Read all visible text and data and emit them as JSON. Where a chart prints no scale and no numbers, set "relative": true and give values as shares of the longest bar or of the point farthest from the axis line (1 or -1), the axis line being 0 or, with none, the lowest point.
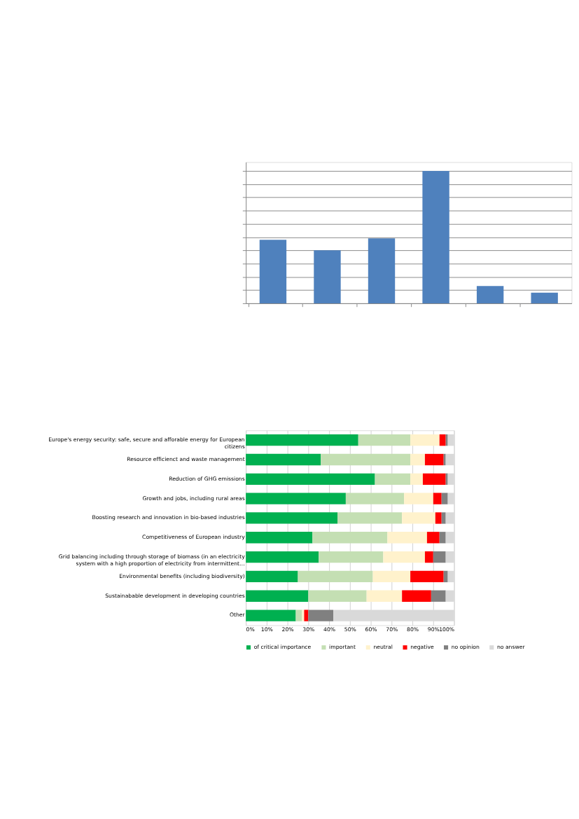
{
  "chart_data": [
    {
      "type": "bar",
      "relative": true,
      "categories": [
        null,
        null,
        null,
        null,
        null,
        null
      ],
      "values": [
        0.48,
        0.4,
        0.49,
        1,
        0.13,
        0.08
      ],
      "color": "#4f81bd",
      "grid": "y"
    },
    {
      "type": "bar",
      "orientation": "horizontal",
      "stacked": true,
      "categories": [
        "Europe's energy security: safe, secure and afforable energy for European citizens",
        "Resource efficienct and waste management",
        "Reduction of GHG emissions",
        "Growth and jobs, including rural areas",
        "Boosting research and innovation in bio-based industries",
        "Competitiveness of European industry",
        "Grid balancing including through storage of biomass (in an electricity system with a high proportion of electricity from intermittent…",
        "Environmental benefits (including biodiversity)",
        "Sustainabable development in developing countries",
        "Other"
      ],
      "series": [
        {
          "name": "of critical importance",
          "color": "#00b050",
          "values": [
            54,
            36,
            62,
            48,
            44,
            32,
            35,
            25,
            30,
            24
          ]
        },
        {
          "name": "important",
          "color": "#c4dfb3",
          "values": [
            25,
            43,
            17,
            28,
            31,
            36,
            31,
            36,
            28,
            3
          ]
        },
        {
          "name": "neutral",
          "color": "#fff2cc",
          "values": [
            14,
            7,
            6,
            14,
            16,
            19,
            20,
            18,
            17,
            1
          ]
        },
        {
          "name": "negative",
          "color": "#ff0000",
          "values": [
            3,
            9,
            11,
            4,
            3,
            6,
            4,
            16,
            14,
            2
          ]
        },
        {
          "name": "no opinion",
          "color": "#808080",
          "values": [
            1,
            1,
            1,
            3,
            2,
            3,
            6,
            2,
            7,
            12
          ]
        },
        {
          "name": "no answer",
          "color": "#d9d9d9",
          "values": [
            3,
            4,
            3,
            3,
            4,
            4,
            4,
            3,
            4,
            58
          ]
        }
      ],
      "xlim": [
        0,
        100
      ],
      "xticks": [
        {
          "value": 0,
          "label": "0%"
        },
        {
          "value": 10,
          "label": "10%"
        },
        {
          "value": 20,
          "label": "20%"
        },
        {
          "value": 30,
          "label": "30%"
        },
        {
          "value": 40,
          "label": "40%"
        },
        {
          "value": 50,
          "label": "50%"
        },
        {
          "value": 60,
          "label": "60%"
        },
        {
          "value": 70,
          "label": "70%"
        },
        {
          "value": 80,
          "label": "80%"
        },
        {
          "value": 90,
          "label": "90%"
        },
        {
          "value": 100,
          "label": "100%"
        }
      ],
      "grid": "x",
      "legend": "bottom"
    }
  ]
}
